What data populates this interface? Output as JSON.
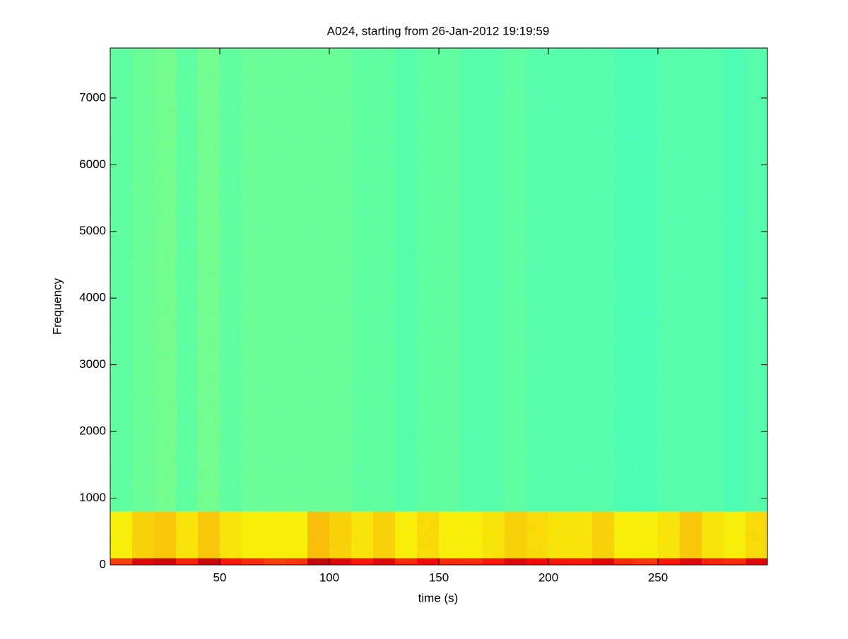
{
  "chart_data": {
    "type": "spectrogram",
    "title": "A024, starting from 26-Jan-2012 19:19:59",
    "x_label": "time (s)",
    "y_label": "Frequency",
    "xlim": [
      0,
      300
    ],
    "ylim": [
      0,
      7750
    ],
    "xticks": [
      50,
      100,
      150,
      200,
      250
    ],
    "yticks": [
      0,
      1000,
      2000,
      3000,
      4000,
      5000,
      6000,
      7000
    ],
    "colormap": "jet",
    "clim": [
      0,
      1
    ],
    "time_bins": [
      0,
      10,
      20,
      30,
      40,
      50,
      60,
      70,
      80,
      90,
      100,
      110,
      120,
      130,
      140,
      150,
      160,
      170,
      180,
      190,
      200,
      210,
      220,
      230,
      240,
      250,
      260,
      270,
      280,
      290,
      300
    ],
    "freq_bins": [
      0,
      100,
      800,
      7750
    ],
    "z": [
      [
        0.82,
        0.9,
        0.92,
        0.85,
        0.92,
        0.86,
        0.84,
        0.82,
        0.83,
        0.93,
        0.9,
        0.86,
        0.9,
        0.84,
        0.88,
        0.84,
        0.84,
        0.86,
        0.9,
        0.88,
        0.86,
        0.86,
        0.9,
        0.84,
        0.83,
        0.86,
        0.9,
        0.85,
        0.84,
        0.9
      ],
      [
        0.64,
        0.67,
        0.68,
        0.65,
        0.68,
        0.65,
        0.64,
        0.64,
        0.64,
        0.69,
        0.67,
        0.65,
        0.67,
        0.64,
        0.66,
        0.64,
        0.64,
        0.65,
        0.67,
        0.66,
        0.65,
        0.65,
        0.67,
        0.64,
        0.64,
        0.65,
        0.68,
        0.65,
        0.64,
        0.66
      ],
      [
        0.47,
        0.48,
        0.49,
        0.47,
        0.49,
        0.47,
        0.48,
        0.48,
        0.48,
        0.48,
        0.48,
        0.47,
        0.47,
        0.46,
        0.47,
        0.47,
        0.46,
        0.46,
        0.47,
        0.46,
        0.46,
        0.46,
        0.46,
        0.45,
        0.45,
        0.46,
        0.46,
        0.46,
        0.45,
        0.46
      ]
    ]
  }
}
